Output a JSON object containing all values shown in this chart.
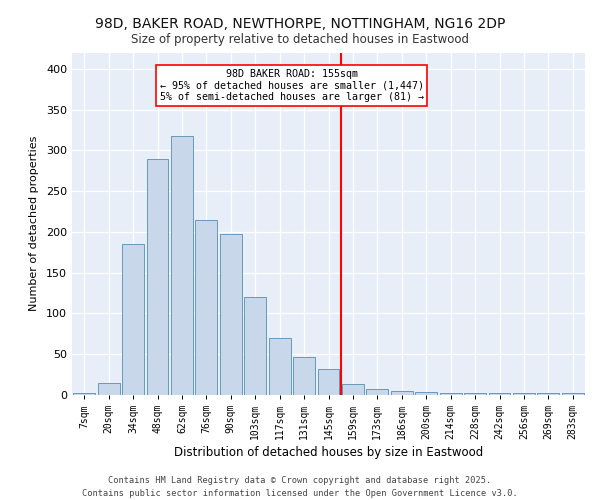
{
  "title_line1": "98D, BAKER ROAD, NEWTHORPE, NOTTINGHAM, NG16 2DP",
  "title_line2": "Size of property relative to detached houses in Eastwood",
  "xlabel": "Distribution of detached houses by size in Eastwood",
  "ylabel": "Number of detached properties",
  "bin_labels": [
    "7sqm",
    "20sqm",
    "34sqm",
    "48sqm",
    "62sqm",
    "76sqm",
    "90sqm",
    "103sqm",
    "117sqm",
    "131sqm",
    "145sqm",
    "159sqm",
    "173sqm",
    "186sqm",
    "200sqm",
    "214sqm",
    "228sqm",
    "242sqm",
    "256sqm",
    "269sqm",
    "283sqm"
  ],
  "bar_values": [
    3,
    15,
    185,
    290,
    318,
    215,
    198,
    120,
    70,
    46,
    32,
    13,
    7,
    5,
    4,
    3,
    3,
    3,
    2,
    3,
    3
  ],
  "bar_color": "#c8d8ea",
  "bar_edge_color": "#6699bb",
  "vline_x_index": 11,
  "vline_color": "red",
  "annotation_text": "98D BAKER ROAD: 155sqm\n← 95% of detached houses are smaller (1,447)\n5% of semi-detached houses are larger (81) →",
  "annotation_box_color": "white",
  "annotation_box_edge": "red",
  "ylim": [
    0,
    420
  ],
  "yticks": [
    0,
    50,
    100,
    150,
    200,
    250,
    300,
    350,
    400
  ],
  "bg_color": "#e8eef8",
  "footer_line1": "Contains HM Land Registry data © Crown copyright and database right 2025.",
  "footer_line2": "Contains public sector information licensed under the Open Government Licence v3.0."
}
